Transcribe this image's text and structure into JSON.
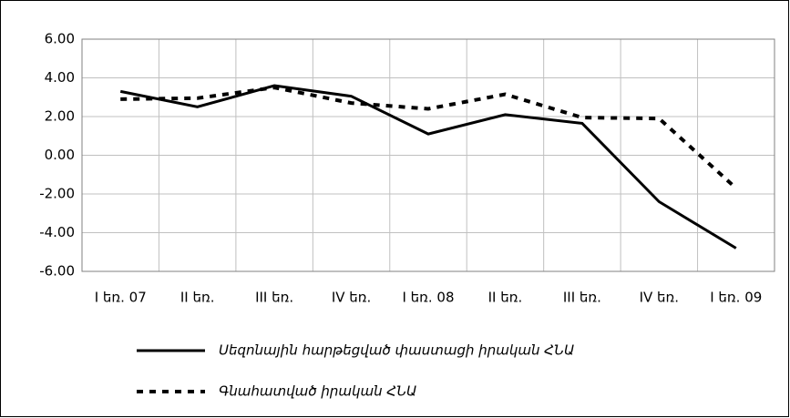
{
  "chart_data": {
    "type": "line",
    "categories": [
      "I եռ. 07",
      "II եռ.",
      "III եռ.",
      "IV եռ.",
      "I եռ. 08",
      "II եռ.",
      "III եռ.",
      "IV եռ.",
      "I եռ. 09"
    ],
    "series": [
      {
        "name": "Սեզոնային հարթեցված փաստացի իրական ՀՆԱ",
        "color": "#000000",
        "dash": "solid",
        "values": [
          3.3,
          2.5,
          3.6,
          3.05,
          1.1,
          2.1,
          1.65,
          -2.4,
          -4.8
        ]
      },
      {
        "name": "Գնահատված իրական ՀՆԱ",
        "color": "#000000",
        "dash": "dotted",
        "values": [
          2.9,
          2.95,
          3.5,
          2.7,
          2.4,
          3.15,
          1.95,
          1.9,
          -1.7
        ]
      }
    ],
    "ylim": [
      -6,
      6
    ],
    "yticks": [
      {
        "value": -6,
        "label": "-6.00"
      },
      {
        "value": -4,
        "label": "-4.00"
      },
      {
        "value": -2,
        "label": "-2.00"
      },
      {
        "value": 0,
        "label": "0.00"
      },
      {
        "value": 2,
        "label": "2.00"
      },
      {
        "value": 4,
        "label": "4.00"
      },
      {
        "value": 6,
        "label": "6.00"
      }
    ],
    "grid": true
  }
}
